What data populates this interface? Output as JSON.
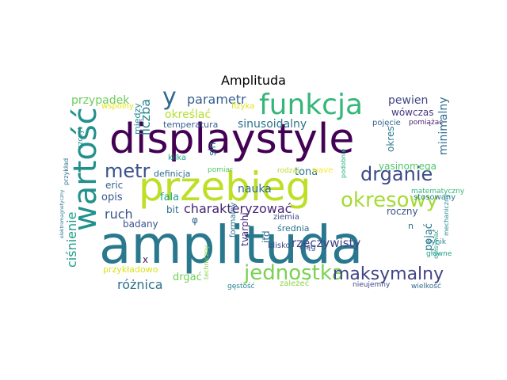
{
  "title": "Amplituda",
  "words": [
    {
      "text": "amplituda",
      "color": "#2a788e"
    },
    {
      "text": "displaystyle",
      "color": "#440154"
    },
    {
      "text": "przebieg",
      "color": "#bddf26"
    },
    {
      "text": "wartość",
      "color": "#21918c"
    },
    {
      "text": "funkcja",
      "color": "#35b779"
    },
    {
      "text": "okresowy",
      "color": "#a5db36"
    },
    {
      "text": "drganie",
      "color": "#3e4989"
    },
    {
      "text": "jednostka",
      "color": "#7ad151"
    },
    {
      "text": "maksymalny",
      "color": "#414487"
    },
    {
      "text": "metr",
      "color": "#3b528b"
    },
    {
      "text": "y",
      "color": "#31688e"
    },
    {
      "text": "parametr",
      "color": "#355f8d"
    },
    {
      "text": "przypadek",
      "color": "#6ccd5a"
    },
    {
      "text": "liczba",
      "color": "#26828e"
    },
    {
      "text": "sinusoidalny",
      "color": "#2c728e"
    },
    {
      "text": "charakteryzować",
      "color": "#482677"
    },
    {
      "text": "rzeczywisty",
      "color": "#404688"
    },
    {
      "text": "ruch",
      "color": "#39568c"
    },
    {
      "text": "ciśnienie",
      "color": "#1f9e89"
    },
    {
      "text": "różnica",
      "color": "#2d708e"
    },
    {
      "text": "pewien",
      "color": "#3f4788"
    },
    {
      "text": "minimalny",
      "color": "#2e6e8e"
    },
    {
      "text": "wówczas",
      "color": "#453781"
    },
    {
      "text": "określać",
      "color": "#b5de2b"
    },
    {
      "text": "temperatura",
      "color": "#365d8d"
    },
    {
      "text": "nauka",
      "color": "#30698e"
    },
    {
      "text": "tona",
      "color": "#2b758e"
    },
    {
      "text": "opis",
      "color": "#38588c"
    },
    {
      "text": "eric",
      "color": "#32648e"
    },
    {
      "text": "fala",
      "color": "#20a486"
    },
    {
      "text": "bit",
      "color": "#2e6f8e"
    },
    {
      "text": "badany",
      "color": "#3a548c"
    },
    {
      "text": "definicja",
      "color": "#2f6b8e"
    },
    {
      "text": "yasinomega",
      "color": "#52c569"
    },
    {
      "text": "roczny",
      "color": "#3b518b"
    },
    {
      "text": "średnia",
      "color": "#2c718e"
    },
    {
      "text": "drgać",
      "color": "#73d056"
    },
    {
      "text": "przykładowo",
      "color": "#d8e219"
    },
    {
      "text": "pojęcie",
      "color": "#33638d"
    },
    {
      "text": "pomiążać",
      "color": "#481a6c"
    },
    {
      "text": "okres",
      "color": "#297b8e"
    },
    {
      "text": "pojąć",
      "color": "#2a778e"
    },
    {
      "text": "między",
      "color": "#24868e"
    },
    {
      "text": "szczyt",
      "color": "#23898e"
    },
    {
      "text": "wspólny",
      "color": "#e5e419"
    },
    {
      "text": "fizyka",
      "color": "#dde318"
    },
    {
      "text": "kilka",
      "color": "#22a785"
    },
    {
      "text": "sin",
      "color": "#287c8e"
    },
    {
      "text": "pomiar",
      "color": "#56c667"
    },
    {
      "text": "rodzaj",
      "color": "#b8de29"
    },
    {
      "text": "wave",
      "color": "#fde725"
    },
    {
      "text": "stosowany",
      "color": "#277f8e"
    },
    {
      "text": "n",
      "color": "#2c738e"
    },
    {
      "text": "ziemia",
      "color": "#3d4e8a"
    },
    {
      "text": "blisko",
      "color": "#3c508b"
    },
    {
      "text": "ciąg",
      "color": "#3c4f8a"
    },
    {
      "text": "wynik",
      "color": "#27808e"
    },
    {
      "text": "główne",
      "color": "#1fa088"
    },
    {
      "text": "zależeć",
      "color": "#8bd646"
    },
    {
      "text": "gęstość",
      "color": "#25848e"
    },
    {
      "text": "wielkość",
      "color": "#306a8e"
    },
    {
      "text": "nieujemny",
      "color": "#3f4889"
    },
    {
      "text": "matematyczny",
      "color": "#31b57b"
    },
    {
      "text": "mechaniczny",
      "color": "#238a8d"
    },
    {
      "text": "formalny",
      "color": "#2b748e"
    },
    {
      "text": "tvarphi",
      "color": "#482878"
    },
    {
      "text": "itd",
      "color": "#2e6d8e"
    },
    {
      "text": "x",
      "color": "#471365"
    },
    {
      "text": "φ",
      "color": "#31678e"
    },
    {
      "text": "przykład",
      "color": "#2d708e"
    },
    {
      "text": "podobnie",
      "color": "#26ad81"
    },
    {
      "text": "opisywać",
      "color": "#1e9c89"
    },
    {
      "text": "elektromagnetyczny",
      "color": "#2a788e"
    },
    {
      "text": "techniczny",
      "color": "#86d549"
    }
  ]
}
